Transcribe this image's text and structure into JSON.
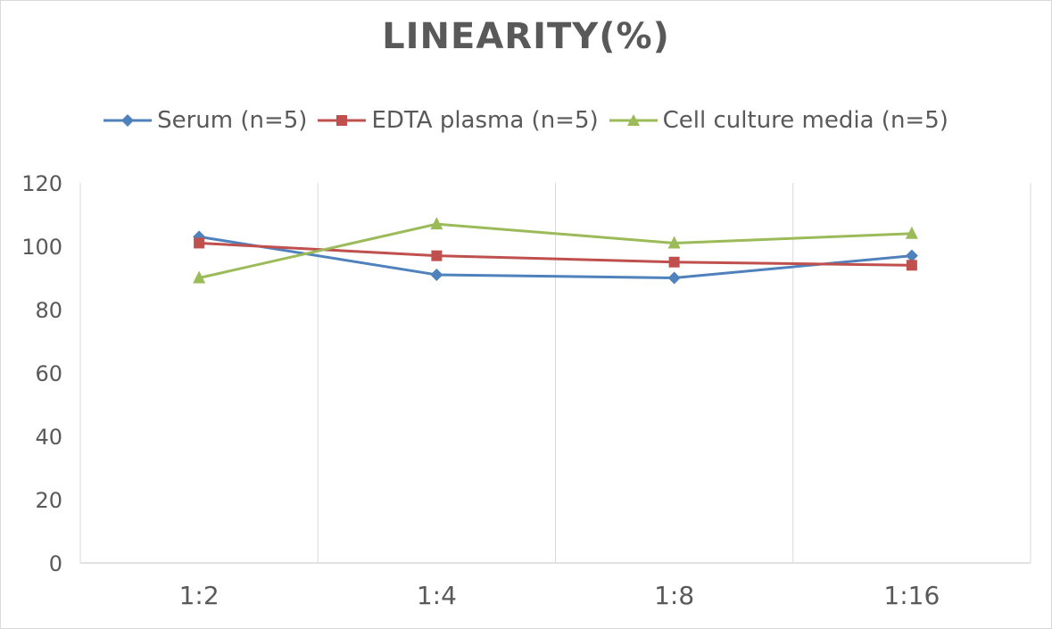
{
  "chart_data": {
    "type": "line",
    "title": "LINEARITY(%)",
    "categories": [
      "1:2",
      "1:4",
      "1:8",
      "1:16"
    ],
    "ylim": [
      0,
      120
    ],
    "yticks": [
      0,
      20,
      40,
      60,
      80,
      100,
      120
    ],
    "grid": "vertical",
    "legend_position": "top",
    "series": [
      {
        "name": "Serum (n=5)",
        "values": [
          103,
          91,
          90,
          97
        ],
        "color": "#4f81bd",
        "marker": "diamond"
      },
      {
        "name": "EDTA plasma (n=5)",
        "values": [
          101,
          97,
          95,
          94
        ],
        "color": "#c0504d",
        "marker": "square"
      },
      {
        "name": "Cell culture media (n=5)",
        "values": [
          90,
          107,
          101,
          104
        ],
        "color": "#9bbb59",
        "marker": "triangle"
      }
    ]
  }
}
